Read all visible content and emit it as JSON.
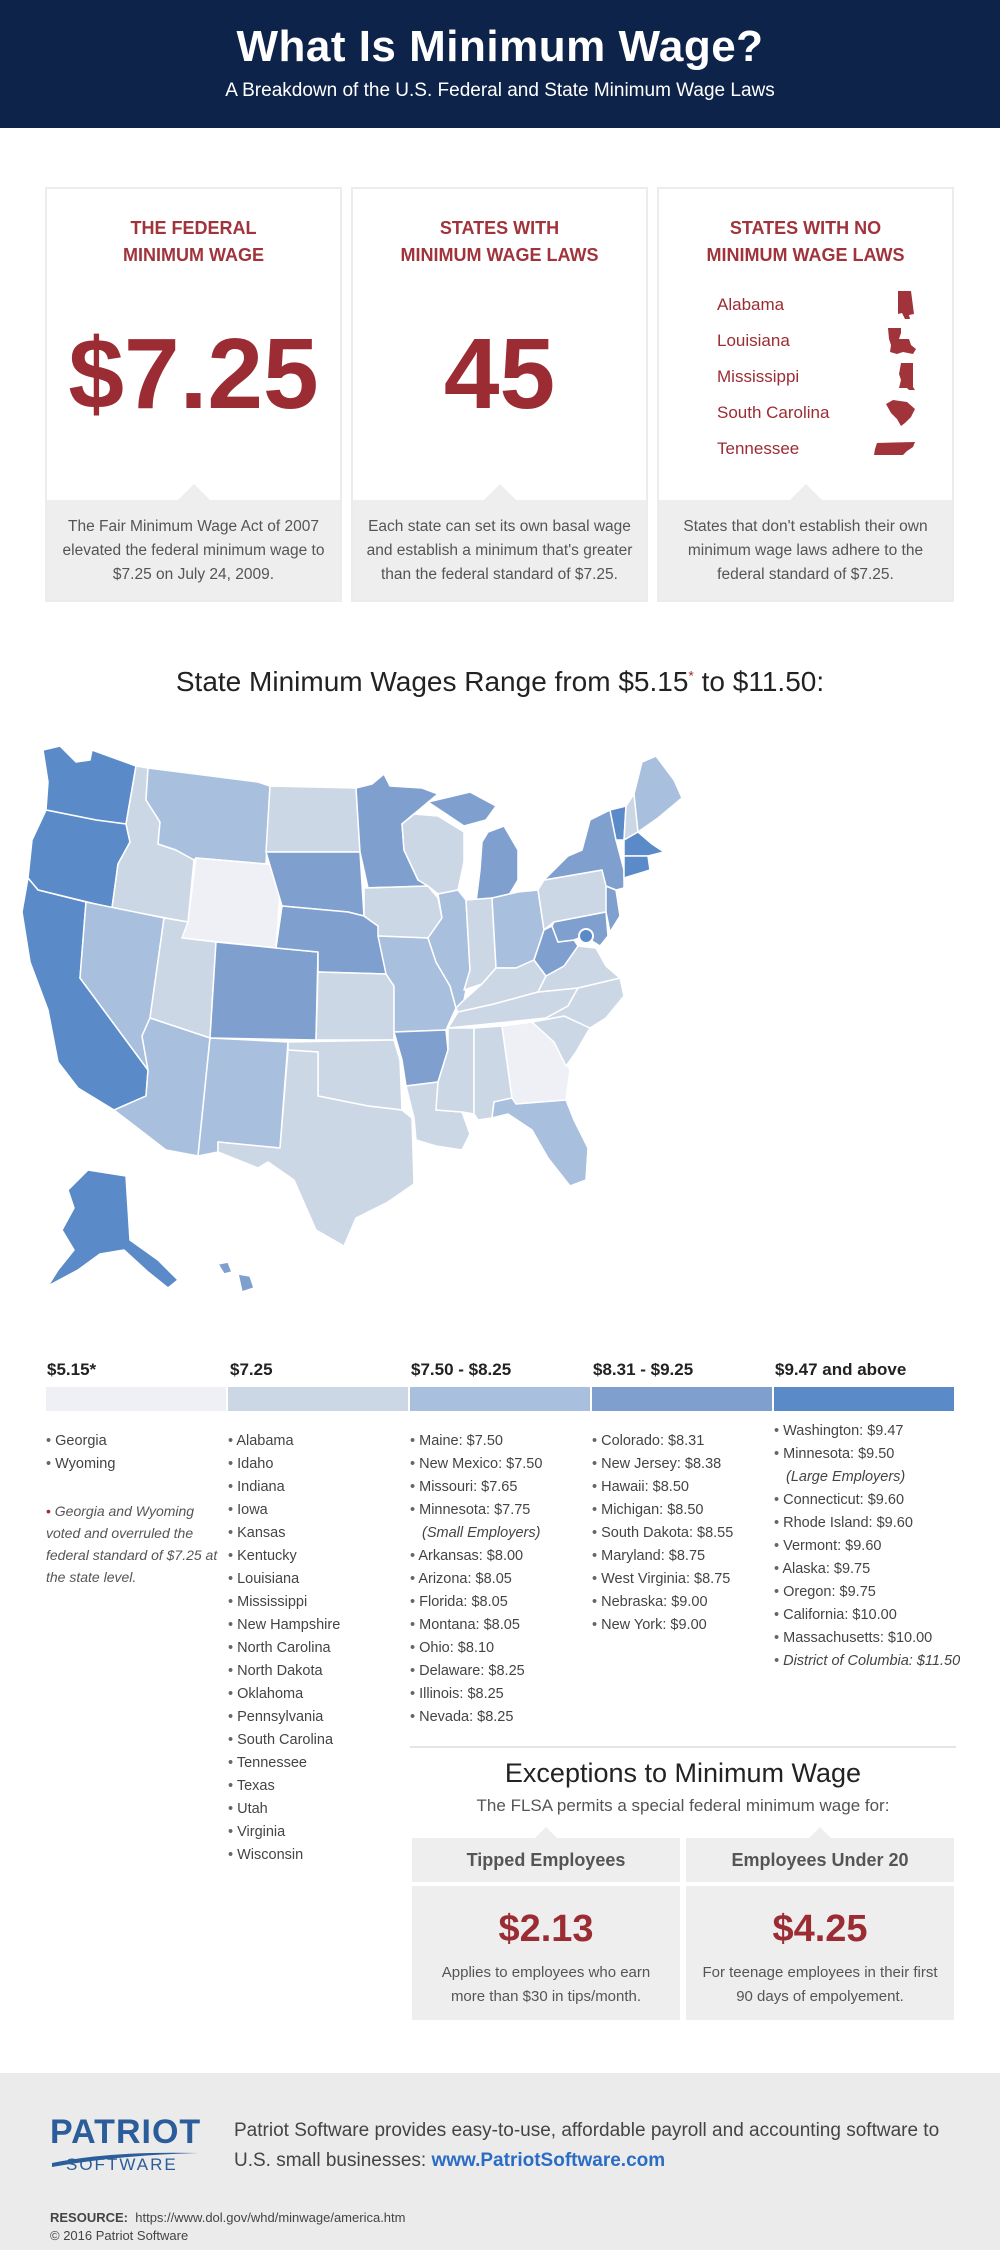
{
  "header": {
    "title": "What Is Minimum Wage?",
    "subtitle": "A Breakdown of the U.S. Federal and State Minimum Wage Laws"
  },
  "cards": {
    "federal": {
      "title_line1": "THE FEDERAL",
      "title_line2": "MINIMUM WAGE",
      "value": "$7.25",
      "desc_line1": "The Fair Minimum Wage Act of 2007",
      "desc_line2": "elevated the federal minimum wage to",
      "desc_line3": "$7.25 on July 24, 2009."
    },
    "with_laws": {
      "title_line1": "STATES WITH",
      "title_line2": "MINIMUM WAGE LAWS",
      "value": "45",
      "desc_line1": "Each state can set its own basal wage",
      "desc_line2": "and establish a minimum that's greater",
      "desc_line3": "than the federal standard of $7.25."
    },
    "no_laws": {
      "title_line1": "STATES WITH NO",
      "title_line2": "MINIMUM WAGE LAWS",
      "states": [
        "Alabama",
        "Louisiana",
        "Mississippi",
        "South Carolina",
        "Tennessee"
      ],
      "desc_line1": "States that don't establish their own",
      "desc_line2": "minimum wage laws adhere to the",
      "desc_line3": "federal standard of $7.25."
    }
  },
  "range": {
    "text_before": "State Minimum Wages Range from $5.15",
    "asterisk": "*",
    "text_after": " to $11.50:"
  },
  "colors": {
    "tier1": "#eef0f6",
    "tier2": "#ccd7e6",
    "tier3": "#a8bfdd",
    "tier4": "#7fa0cf",
    "tier5": "#5a8ac8",
    "accent": "#9b2c33",
    "navy": "#0e2349"
  },
  "legend": {
    "tiers": [
      {
        "label": "$5.15*",
        "items": [
          "Georgia",
          "Wyoming"
        ]
      },
      {
        "label": "$7.25",
        "items": [
          "Alabama",
          "Idaho",
          "Indiana",
          "Iowa",
          "Kansas",
          "Kentucky",
          "Louisiana",
          "Mississippi",
          "New Hampshire",
          "North Carolina",
          "North Dakota",
          "Oklahoma",
          "Pennsylvania",
          "South Carolina",
          "Tennessee",
          "Texas",
          "Utah",
          "Virginia",
          "Wisconsin"
        ]
      },
      {
        "label": "$7.50 - $8.25",
        "items": [
          "Maine: $7.50",
          "New Mexico: $7.50",
          "Missouri: $7.65",
          "Minnesota: $7.75",
          "(Small Employers)",
          "Arkansas: $8.00",
          "Arizona: $8.05",
          "Florida: $8.05",
          "Montana: $8.05",
          "Ohio: $8.10",
          "Delaware: $8.25",
          "Illinois: $8.25",
          "Nevada: $8.25"
        ]
      },
      {
        "label": "$8.31 - $9.25",
        "items": [
          "Colorado: $8.31",
          "New Jersey: $8.38",
          "Hawaii: $8.50",
          "Michigan: $8.50",
          "South Dakota: $8.55",
          "Maryland: $8.75",
          "West Virginia: $8.75",
          "Nebraska: $9.00",
          "New York: $9.00"
        ]
      },
      {
        "label": "$9.47 and above",
        "items": [
          "Washington: $9.47",
          "Minnesota: $9.50",
          "(Large Employers)",
          "Connecticut: $9.60",
          "Rhode Island: $9.60",
          "Vermont: $9.60",
          "Alaska: $9.75",
          "Oregon: $9.75",
          "California: $10.00",
          "Massachusetts: $10.00",
          "District of Columbia: $11.50"
        ]
      }
    ],
    "footnote": "Georgia and Wyoming voted and overruled the federal standard of $7.25 at the state level."
  },
  "exceptions": {
    "title": "Exceptions to Minimum Wage",
    "subtitle": "The FLSA permits a special federal minimum wage for:",
    "tipped": {
      "heading": "Tipped Employees",
      "value": "$2.13",
      "desc_line1": "Applies to employees who earn",
      "desc_line2": "more than $30 in tips/month."
    },
    "under20": {
      "heading": "Employees Under 20",
      "value": "$4.25",
      "desc_line1": "For teenage employees in their first",
      "desc_line2": "90 days of empolyement."
    }
  },
  "footer": {
    "logo_main": "PATRIOT",
    "logo_sub": "SOFTWARE",
    "text": "Patriot Software provides easy-to-use, affordable payroll and accounting software to U.S. small businesses: ",
    "link": "www.PatriotSoftware.com",
    "resource_label": "RESOURCE:",
    "resource_url": "https://www.dol.gov/whd/minwage/america.htm",
    "copyright": "© 2016 Patriot Software"
  }
}
